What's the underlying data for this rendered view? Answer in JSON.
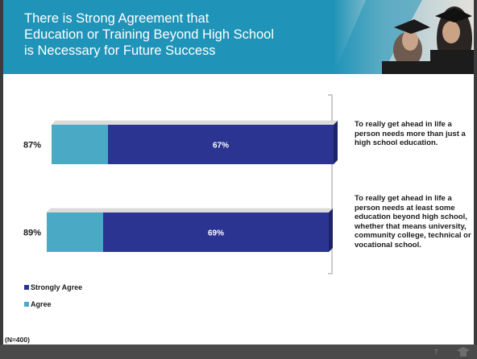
{
  "slide": {
    "title": "There is Strong Agreement that\nEducation or Training Beyond High School\nis Necessary for Future Success",
    "page_number": "7",
    "base_note": "(N=400)"
  },
  "colors": {
    "header": "#1f94b8",
    "strongly_agree": "#2b3591",
    "agree": "#4aa9c5",
    "footer": "#4a4a4a"
  },
  "chart_data": {
    "type": "bar",
    "orientation": "horizontal",
    "stacked": true,
    "categories": [
      "To really get ahead in life a person needs more than just a high school education.",
      "To really get ahead in life a person needs at least some education beyond high school, whether that means university, community college, technical or vocational school."
    ],
    "totals": [
      "87%",
      "89%"
    ],
    "series": [
      {
        "name": "Strongly Agree",
        "values": [
          67,
          69
        ],
        "labels": [
          "67%",
          "69%"
        ],
        "color": "#2b3591"
      },
      {
        "name": "Agree",
        "values": [
          20,
          20
        ],
        "labels": [
          "",
          ""
        ],
        "color": "#4aa9c5"
      }
    ],
    "legend_position": "bottom-left",
    "grid": false
  }
}
